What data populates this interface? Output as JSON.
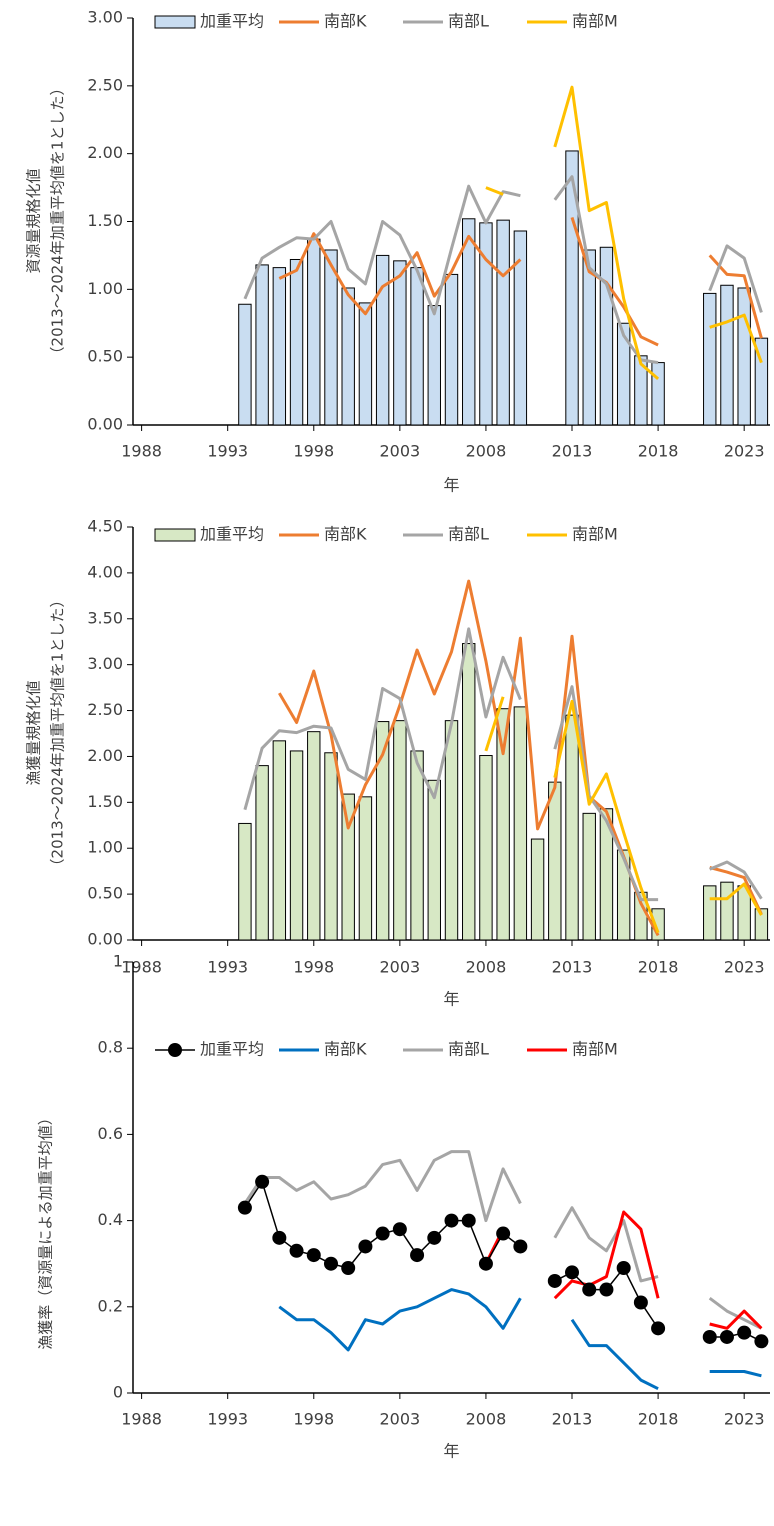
{
  "chart_data": [
    {
      "type": "combo",
      "xlabel": "年",
      "ylabel": [
        "資源量規格化値",
        "（2013～2024年加重平均値を1とした）"
      ],
      "xlim": [
        1987.5,
        2024.5
      ],
      "xticks": [
        1988,
        1993,
        1998,
        2003,
        2008,
        2013,
        2018,
        2023
      ],
      "ylim": [
        0,
        3
      ],
      "yticks": [
        {
          "value": 0,
          "label": "0.00"
        },
        {
          "value": 0.5,
          "label": "0.50"
        },
        {
          "value": 1,
          "label": "1.00"
        },
        {
          "value": 1.5,
          "label": "1.50"
        },
        {
          "value": 2,
          "label": "2.00"
        },
        {
          "value": 2.5,
          "label": "2.50"
        },
        {
          "value": 3,
          "label": "3.00"
        }
      ],
      "x": [
        1994,
        1995,
        1996,
        1997,
        1998,
        1999,
        2000,
        2001,
        2002,
        2003,
        2004,
        2005,
        2006,
        2007,
        2008,
        2009,
        2010,
        2011,
        2012,
        2013,
        2014,
        2015,
        2016,
        2017,
        2018,
        2019,
        2020,
        2021,
        2022,
        2023,
        2024
      ],
      "series": [
        {
          "name": "加重平均",
          "type": "bar",
          "color": "#c9ddf1",
          "values": [
            0.89,
            1.18,
            1.16,
            1.22,
            1.37,
            1.29,
            1.01,
            0.9,
            1.25,
            1.21,
            1.16,
            0.88,
            1.11,
            1.52,
            1.49,
            1.51,
            1.43,
            null,
            null,
            2.02,
            1.29,
            1.31,
            0.75,
            0.51,
            0.46,
            null,
            null,
            0.97,
            1.03,
            1.01,
            0.64
          ]
        },
        {
          "name": "南部K",
          "type": "line",
          "color": "#ed7d31",
          "values": [
            null,
            null,
            1.08,
            1.14,
            1.41,
            1.18,
            0.96,
            0.82,
            1.02,
            1.1,
            1.27,
            0.95,
            1.13,
            1.39,
            1.22,
            1.1,
            1.22,
            null,
            null,
            1.53,
            1.13,
            1.05,
            0.87,
            0.65,
            0.59,
            null,
            null,
            1.25,
            1.11,
            1.1,
            0.64
          ]
        },
        {
          "name": "南部L",
          "type": "line",
          "color": "#a5a5a5",
          "values": [
            0.93,
            1.23,
            1.31,
            1.38,
            1.37,
            1.5,
            1.15,
            1.04,
            1.5,
            1.4,
            1.14,
            0.82,
            1.3,
            1.76,
            1.49,
            1.72,
            1.69,
            null,
            1.66,
            1.83,
            1.16,
            1.04,
            0.66,
            0.48,
            0.46,
            null,
            null,
            0.99,
            1.32,
            1.23,
            0.83
          ]
        },
        {
          "name": "南部M",
          "type": "line",
          "color": "#ffc000",
          "values": [
            null,
            null,
            null,
            null,
            null,
            null,
            null,
            null,
            null,
            null,
            null,
            null,
            null,
            null,
            1.75,
            1.7,
            null,
            null,
            2.05,
            2.49,
            1.58,
            1.64,
            0.93,
            0.45,
            0.34,
            null,
            null,
            0.72,
            0.76,
            0.81,
            0.46
          ]
        }
      ]
    },
    {
      "type": "combo",
      "xlabel": "年",
      "ylabel": [
        "漁獲量規格化値",
        "（2013～2024年加重平均値を1とした）"
      ],
      "xlim": [
        1987.5,
        2024.5
      ],
      "xticks": [
        1988,
        1993,
        1998,
        2003,
        2008,
        2013,
        2018,
        2023
      ],
      "ylim": [
        0,
        4.5
      ],
      "yticks": [
        {
          "value": 0,
          "label": "0.00"
        },
        {
          "value": 0.5,
          "label": "0.50"
        },
        {
          "value": 1,
          "label": "1.00"
        },
        {
          "value": 1.5,
          "label": "1.50"
        },
        {
          "value": 2,
          "label": "2.00"
        },
        {
          "value": 2.5,
          "label": "2.50"
        },
        {
          "value": 3,
          "label": "3.00"
        },
        {
          "value": 3.5,
          "label": "3.50"
        },
        {
          "value": 4,
          "label": "4.00"
        },
        {
          "value": 4.5,
          "label": "4.50"
        }
      ],
      "x": [
        1994,
        1995,
        1996,
        1997,
        1998,
        1999,
        2000,
        2001,
        2002,
        2003,
        2004,
        2005,
        2006,
        2007,
        2008,
        2009,
        2010,
        2011,
        2012,
        2013,
        2014,
        2015,
        2016,
        2017,
        2018,
        2019,
        2020,
        2021,
        2022,
        2023,
        2024
      ],
      "series": [
        {
          "name": "加重平均",
          "type": "bar",
          "color": "#d7e8c5",
          "values": [
            1.27,
            1.9,
            2.17,
            2.06,
            2.27,
            2.04,
            1.59,
            1.56,
            2.38,
            2.39,
            2.06,
            1.74,
            2.39,
            3.23,
            2.01,
            2.52,
            2.54,
            1.1,
            1.72,
            2.45,
            1.38,
            1.43,
            0.98,
            0.52,
            0.34,
            null,
            null,
            0.59,
            0.63,
            0.59,
            0.34
          ]
        },
        {
          "name": "南部K",
          "type": "line",
          "color": "#ed7d31",
          "values": [
            null,
            null,
            2.69,
            2.37,
            2.93,
            2.24,
            1.22,
            1.69,
            2.02,
            2.56,
            3.16,
            2.68,
            3.14,
            3.91,
            3.04,
            2.03,
            3.29,
            1.21,
            1.66,
            3.31,
            1.56,
            1.4,
            0.91,
            0.4,
            0.05,
            null,
            null,
            0.79,
            0.74,
            0.68,
            0.28
          ]
        },
        {
          "name": "南部L",
          "type": "line",
          "color": "#a5a5a5",
          "values": [
            1.42,
            2.09,
            2.28,
            2.26,
            2.33,
            2.31,
            1.86,
            1.75,
            2.74,
            2.63,
            1.93,
            1.55,
            2.36,
            3.39,
            2.43,
            3.08,
            2.62,
            null,
            2.08,
            2.76,
            1.57,
            1.3,
            0.89,
            0.44,
            0.44,
            null,
            null,
            0.77,
            0.85,
            0.74,
            0.45
          ]
        },
        {
          "name": "南部M",
          "type": "line",
          "color": "#ffc000",
          "values": [
            null,
            null,
            null,
            null,
            null,
            null,
            null,
            null,
            null,
            null,
            null,
            null,
            null,
            null,
            2.06,
            2.65,
            null,
            null,
            1.77,
            2.6,
            1.48,
            1.81,
            1.17,
            0.57,
            0.08,
            null,
            null,
            0.45,
            0.45,
            0.61,
            0.27
          ]
        }
      ]
    },
    {
      "type": "line",
      "xlabel": "年",
      "ylabel": [
        "漁獲率（資源量による加重平均値）"
      ],
      "xlim": [
        1987.5,
        2024.5
      ],
      "xticks": [
        1988,
        1993,
        1998,
        2003,
        2008,
        2013,
        2018,
        2023
      ],
      "ylim": [
        0,
        1
      ],
      "yticks": [
        0,
        0.2,
        0.4,
        0.6,
        0.8,
        1
      ],
      "x": [
        1994,
        1995,
        1996,
        1997,
        1998,
        1999,
        2000,
        2001,
        2002,
        2003,
        2004,
        2005,
        2006,
        2007,
        2008,
        2009,
        2010,
        2011,
        2012,
        2013,
        2014,
        2015,
        2016,
        2017,
        2018,
        2019,
        2020,
        2021,
        2022,
        2023,
        2024
      ],
      "series": [
        {
          "name": "加重平均",
          "color": "#000000",
          "marker": true,
          "values": [
            0.43,
            0.49,
            0.36,
            0.33,
            0.32,
            0.3,
            0.29,
            0.34,
            0.37,
            0.38,
            0.32,
            0.36,
            0.4,
            0.4,
            0.3,
            0.37,
            0.34,
            null,
            0.26,
            0.28,
            0.24,
            0.24,
            0.29,
            0.21,
            0.15,
            null,
            null,
            0.13,
            0.13,
            0.14,
            0.12
          ]
        },
        {
          "name": "南部K",
          "color": "#0070c0",
          "values": [
            null,
            null,
            0.2,
            0.17,
            0.17,
            0.14,
            0.1,
            0.17,
            0.16,
            0.19,
            0.2,
            0.22,
            0.24,
            0.23,
            0.2,
            0.15,
            0.22,
            null,
            null,
            0.17,
            0.11,
            0.11,
            0.07,
            0.03,
            0.01,
            null,
            null,
            0.05,
            0.05,
            0.05,
            0.04
          ]
        },
        {
          "name": "南部L",
          "color": "#a5a5a5",
          "values": [
            0.44,
            0.5,
            0.5,
            0.47,
            0.49,
            0.45,
            0.46,
            0.48,
            0.53,
            0.54,
            0.47,
            0.54,
            0.56,
            0.56,
            0.4,
            0.52,
            0.44,
            null,
            0.36,
            0.43,
            0.36,
            0.33,
            0.4,
            0.26,
            0.27,
            null,
            null,
            0.22,
            0.19,
            0.17,
            0.15
          ]
        },
        {
          "name": "南部M",
          "color": "#ff0000",
          "values": [
            null,
            null,
            null,
            null,
            null,
            null,
            null,
            null,
            null,
            null,
            null,
            null,
            null,
            null,
            0.3,
            0.38,
            null,
            null,
            0.22,
            0.26,
            0.25,
            0.27,
            0.42,
            0.38,
            0.22,
            null,
            null,
            0.16,
            0.15,
            0.19,
            0.15
          ]
        }
      ]
    }
  ]
}
